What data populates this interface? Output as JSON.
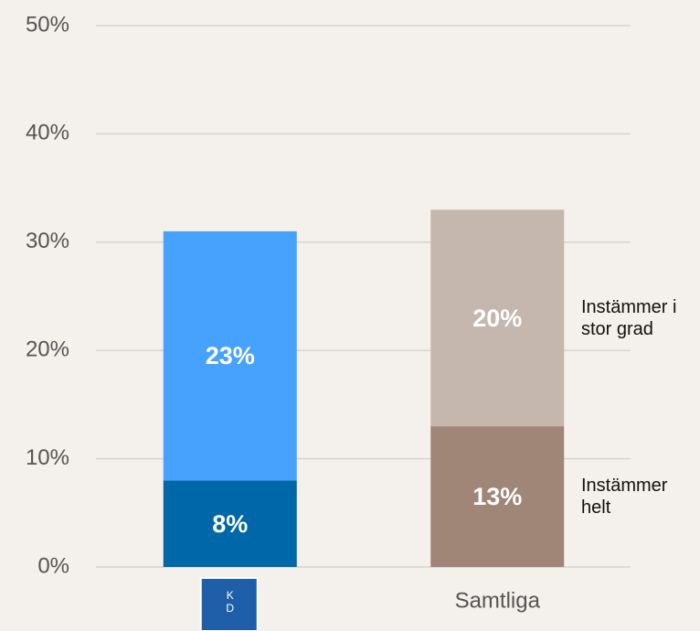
{
  "chart_data": {
    "type": "stacked_bar",
    "categories": [
      null,
      "Samtliga"
    ],
    "logo_text": [
      "K",
      "D"
    ],
    "series": [
      {
        "name": "Instämmer helt",
        "colors": [
          "#0067a9",
          "#a08677"
        ],
        "values": [
          8,
          13
        ],
        "value_labels": [
          "8%",
          "13%"
        ]
      },
      {
        "name": "Instämmer i stor grad",
        "colors": [
          "#47a2fd",
          "#c5b7ad"
        ],
        "values": [
          23,
          20
        ],
        "value_labels": [
          "23%",
          "20%"
        ]
      }
    ],
    "ylim": [
      0,
      50
    ],
    "yticks": [
      {
        "value": 0,
        "label": "0%"
      },
      {
        "value": 10,
        "label": "10%"
      },
      {
        "value": 20,
        "label": "20%"
      },
      {
        "value": 30,
        "label": "30%"
      },
      {
        "value": 40,
        "label": "40%"
      },
      {
        "value": 50,
        "label": "50%"
      }
    ],
    "grid": true,
    "legend": "right"
  }
}
